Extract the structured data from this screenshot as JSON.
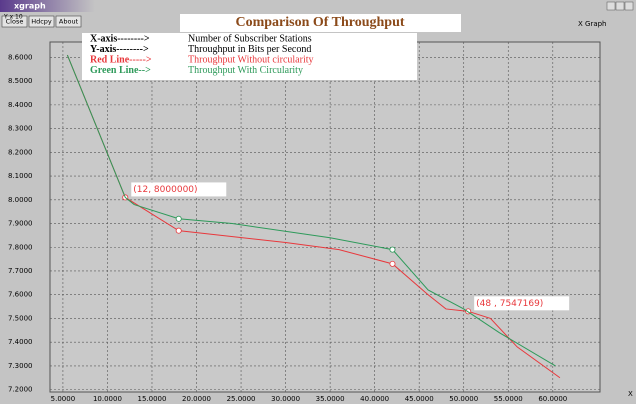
{
  "window_title": "xgraph",
  "buttons": [
    "Close",
    "Hdcpy",
    "About"
  ],
  "window_label": "X Graph",
  "chart_data": {
    "type": "line",
    "title": "Comparison Of Throughput",
    "y_unit_label": "Y x 10",
    "x_axis_label": "X",
    "legend_lines": [
      {
        "key": "X-axis-------->",
        "text": "Number of Subscriber Stations",
        "color": "#000000"
      },
      {
        "key": "Y-axis-------->",
        "text": "Throughput in Bits per Second",
        "color": "#000000"
      },
      {
        "key": "Red Line----->",
        "text": "Throughput Without circularity",
        "color": "#e8383c"
      },
      {
        "key": "Green Line-->",
        "text": "Throughput With Circularity",
        "color": "#2e9a5a"
      }
    ],
    "series": [
      {
        "name": "Throughput Without circularity",
        "color": "#e8383c",
        "x": [
          5.5,
          12,
          18,
          30,
          36,
          42,
          46,
          48,
          50.5,
          53,
          56,
          60.8
        ],
        "values": [
          8.61,
          8.01,
          7.87,
          7.82,
          7.79,
          7.73,
          7.6,
          7.54,
          7.53,
          7.5,
          7.38,
          7.25
        ],
        "marker_indices": [
          1,
          2,
          5,
          8
        ]
      },
      {
        "name": "Throughput With Circularity",
        "color": "#2e9a5a",
        "x": [
          5.5,
          12,
          13,
          18,
          24,
          35,
          42,
          46,
          50,
          54,
          60.3
        ],
        "values": [
          8.61,
          8.01,
          7.98,
          7.92,
          7.9,
          7.84,
          7.79,
          7.62,
          7.54,
          7.44,
          7.3
        ],
        "marker_indices": [
          3,
          6
        ]
      }
    ],
    "annotations": [
      {
        "text": "(12, 8000000)",
        "x": 12,
        "y": 8.01
      },
      {
        "text": "(48 , 7547169)",
        "x": 50.5,
        "y": 7.53
      }
    ],
    "xlim": [
      3.55,
      65.3
    ],
    "ylim": [
      7.19,
      8.665
    ],
    "xticks": [
      {
        "value": 5,
        "label": "5.0000"
      },
      {
        "value": 10,
        "label": "10.0000"
      },
      {
        "value": 15,
        "label": "15.0000"
      },
      {
        "value": 20,
        "label": "20.0000"
      },
      {
        "value": 25,
        "label": "25.0000"
      },
      {
        "value": 30,
        "label": "30.0000"
      },
      {
        "value": 35,
        "label": "35.0000"
      },
      {
        "value": 40,
        "label": "40.0000"
      },
      {
        "value": 45,
        "label": "45.0000"
      },
      {
        "value": 50,
        "label": "50.0000"
      },
      {
        "value": 55,
        "label": "55.0000"
      },
      {
        "value": 60,
        "label": "60.0000"
      }
    ],
    "yticks": [
      {
        "value": 7.2,
        "label": "7.2000"
      },
      {
        "value": 7.3,
        "label": "7.3000"
      },
      {
        "value": 7.4,
        "label": "7.4000"
      },
      {
        "value": 7.5,
        "label": "7.5000"
      },
      {
        "value": 7.6,
        "label": "7.6000"
      },
      {
        "value": 7.7,
        "label": "7.7000"
      },
      {
        "value": 7.8,
        "label": "7.8000"
      },
      {
        "value": 7.9,
        "label": "7.9000"
      },
      {
        "value": 8.0,
        "label": "8.0000"
      },
      {
        "value": 8.1,
        "label": "8.1000"
      },
      {
        "value": 8.2,
        "label": "8.2000"
      },
      {
        "value": 8.3,
        "label": "8.3000"
      },
      {
        "value": 8.4,
        "label": "8.4000"
      },
      {
        "value": 8.5,
        "label": "8.5000"
      },
      {
        "value": 8.6,
        "label": "8.6000"
      }
    ],
    "grid": true
  }
}
